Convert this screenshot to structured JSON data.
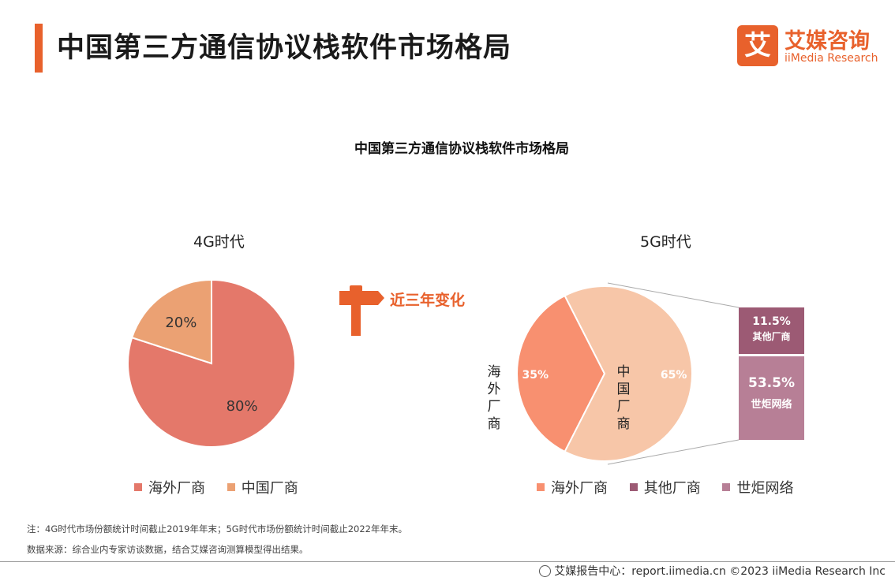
{
  "header": {
    "title": "中国第三方通信协议栈软件市场格局",
    "logo_cn": "艾媒咨询",
    "logo_en": "iiMedia Research",
    "logo_mark": "艾"
  },
  "sign": {
    "label": "近三年变化",
    "icon": "signpost-icon"
  },
  "chart_data": [
    {
      "type": "pie",
      "title": "中国第三方通信协议栈软件市场格局",
      "subtitle": "4G时代",
      "slices": [
        {
          "name": "海外厂商",
          "value": 80,
          "label": "80%",
          "color": "#e4786a"
        },
        {
          "name": "中国厂商",
          "value": 20,
          "label": "20%",
          "color": "#eba173"
        }
      ],
      "legend": [
        "海外厂商",
        "中国厂商"
      ],
      "legend_position": "bottom"
    },
    {
      "type": "pie",
      "subtitle": "5G时代",
      "slices": [
        {
          "name": "海外厂商",
          "value": 35,
          "label": "35%",
          "color": "#f89070",
          "inner_label": "海外厂商"
        },
        {
          "name": "中国厂商",
          "value": 65,
          "label": "65%",
          "color": "#f7c6a8",
          "inner_label": "中国厂商"
        }
      ],
      "breakdown_of": "中国厂商",
      "breakdown": [
        {
          "name": "其他厂商",
          "value": 11.5,
          "label": "11.5%",
          "color": "#9c5a74"
        },
        {
          "name": "世炬网络",
          "value": 53.5,
          "label": "53.5%",
          "color": "#b77f96"
        }
      ],
      "legend": [
        {
          "name": "海外厂商",
          "color": "#f89070"
        },
        {
          "name": "其他厂商",
          "color": "#9c5a74"
        },
        {
          "name": "世炬网络",
          "color": "#b77f96"
        }
      ],
      "legend_position": "bottom"
    }
  ],
  "notes": {
    "note": "注：4G时代市场份额统计时间截止2019年年末；5G时代市场份额统计时间截止2022年年末。",
    "source": "数据来源：综合业内专家访谈数据，结合艾媒咨询测算模型得出结果。"
  },
  "footer": {
    "text": "艾媒报告中心：report.iimedia.cn  ©2023  iiMedia Research  Inc",
    "icon": "globe-icon"
  }
}
